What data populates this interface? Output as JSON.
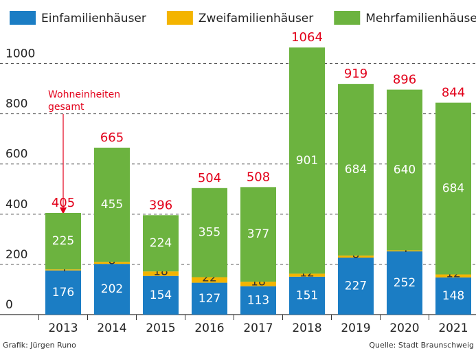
{
  "chart_data": {
    "type": "stacked_bar",
    "categories": [
      "2013",
      "2014",
      "2015",
      "2016",
      "2017",
      "2018",
      "2019",
      "2020",
      "2021"
    ],
    "series": [
      {
        "name": "Einfamilienhäuser",
        "color": "#1b7dc4",
        "values": [
          176,
          202,
          154,
          127,
          113,
          151,
          227,
          252,
          148
        ]
      },
      {
        "name": "Zweifamilienhäuser",
        "color": "#f4b400",
        "values": [
          4,
          8,
          18,
          22,
          18,
          12,
          8,
          4,
          12
        ]
      },
      {
        "name": "Mehrfamilienhäuser",
        "color": "#6cb33f",
        "values": [
          225,
          455,
          224,
          355,
          377,
          901,
          684,
          640,
          684
        ]
      }
    ],
    "totals": [
      405,
      665,
      396,
      504,
      508,
      1064,
      919,
      896,
      844
    ],
    "annotation": [
      "Wohneinheiten",
      "gesamt"
    ],
    "ylim": [
      0,
      1100
    ],
    "yticks": [
      0,
      200,
      400,
      600,
      800,
      1000
    ],
    "grid": true,
    "source_left": "Grafik: Jürgen Runo",
    "source_right": "Quelle: Stadt Braunschweig"
  }
}
